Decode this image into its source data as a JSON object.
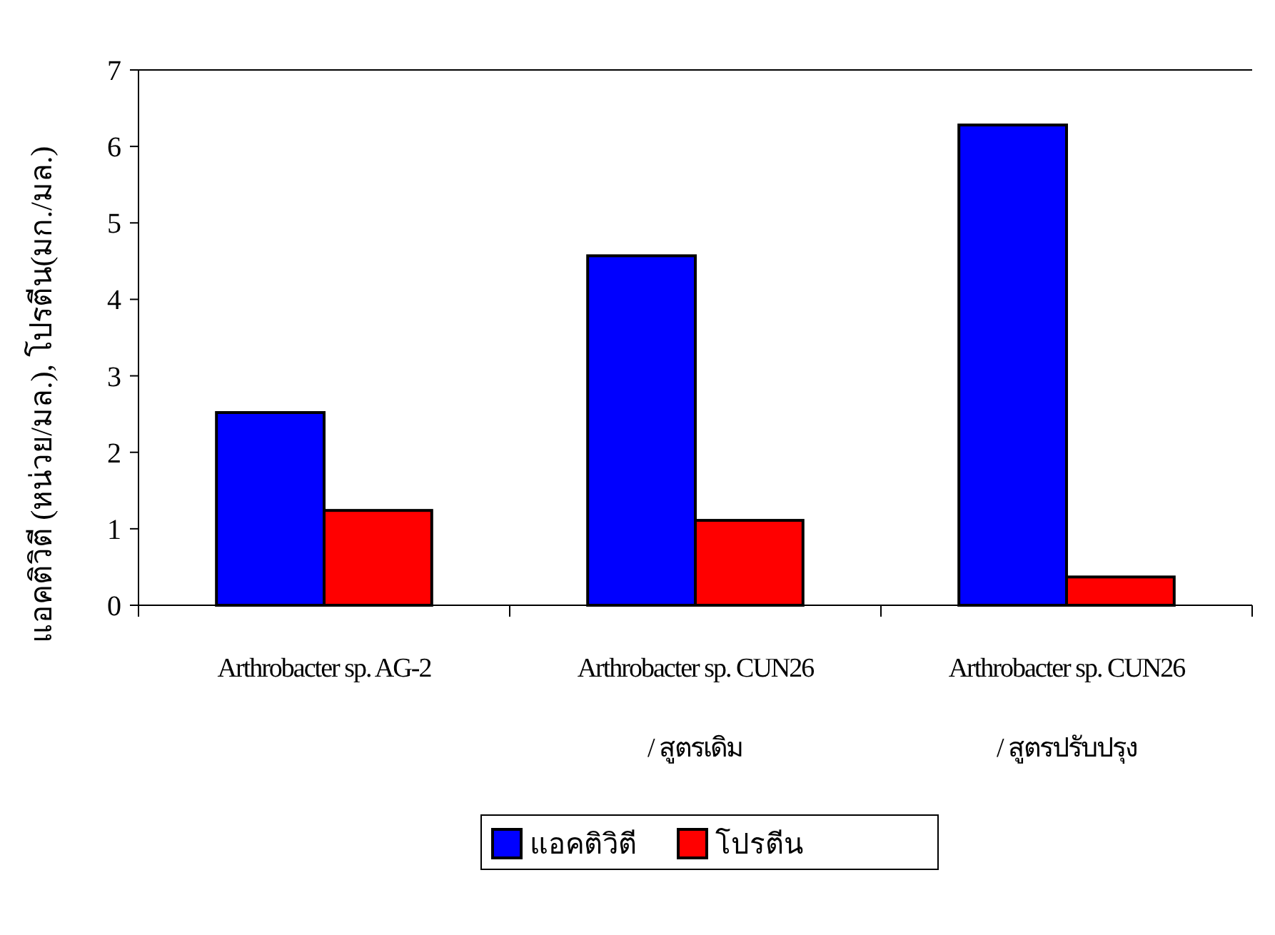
{
  "chart_data": {
    "type": "bar",
    "ylabel": "แอคติวิตี (หน่วย/มล.), โปรตีน(มก./มล.)",
    "categories": [
      "Arthrobacter sp.  AG-2",
      "Arthrobacter sp. CUN26\n/ สูตรเดิม",
      "Arthrobacter sp. CUN26\n/ สูตรปรับปรุง"
    ],
    "series": [
      {
        "name": "แอคติวิตี",
        "color": "#0000ff",
        "values": [
          2.52,
          4.57,
          6.28
        ]
      },
      {
        "name": "โปรตีน",
        "color": "#ff0000",
        "values": [
          1.24,
          1.11,
          0.37
        ]
      }
    ],
    "ylim": [
      0,
      7
    ],
    "yticks": [
      0,
      1,
      2,
      3,
      4,
      5,
      6,
      7
    ],
    "grid": false,
    "legend": "bottom"
  }
}
